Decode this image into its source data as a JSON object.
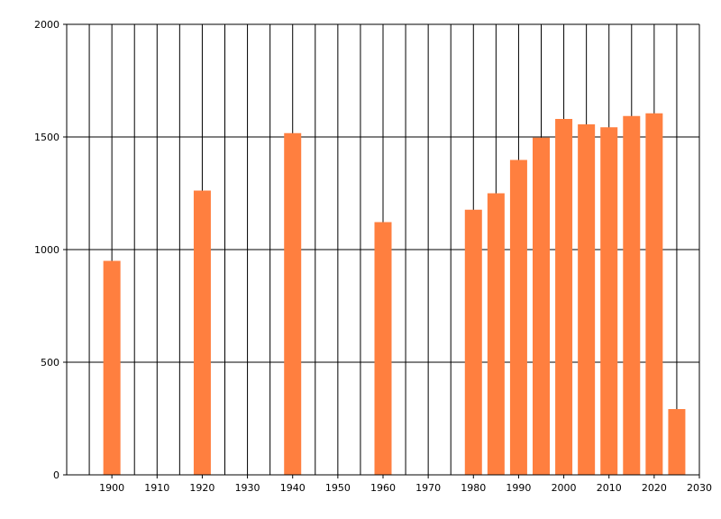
{
  "chart_data": {
    "type": "bar",
    "title": "",
    "xlabel": "",
    "ylabel": "",
    "xlim": [
      1890,
      2030
    ],
    "ylim": [
      0,
      2000
    ],
    "x_ticks": [
      1900,
      1910,
      1920,
      1930,
      1940,
      1950,
      1960,
      1970,
      1980,
      1990,
      2000,
      2010,
      2020,
      2030
    ],
    "y_ticks": [
      0,
      500,
      1000,
      1500,
      2000
    ],
    "grid": true,
    "bar_color": "#ff7f3f",
    "series": [
      {
        "x": [
          1900,
          1920,
          1940,
          1960,
          1980,
          1985,
          1990,
          1995,
          2000,
          2005,
          2010,
          2015,
          2020,
          2025
        ],
        "values": [
          950,
          1262,
          1517,
          1122,
          1177,
          1250,
          1398,
          1497,
          1580,
          1556,
          1543,
          1593,
          1605,
          292
        ]
      }
    ]
  }
}
